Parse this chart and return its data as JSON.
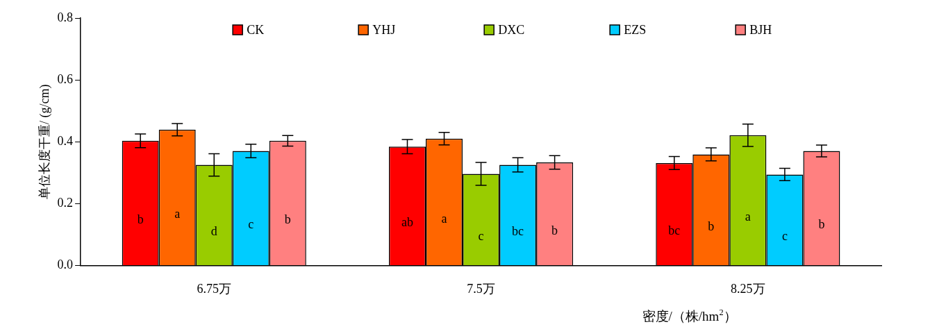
{
  "chart_data": {
    "type": "bar",
    "xlabel": "密度/（株/hm$^{2}$）",
    "ylabel": "单位长度干重/ (g/cm)",
    "categories": [
      "6.75万",
      "7.5万",
      "8.25万"
    ],
    "series": [
      {
        "name": "CK",
        "color": "#ff0000",
        "values": [
          0.403,
          0.384,
          0.331
        ],
        "errors": [
          0.022,
          0.023,
          0.021
        ],
        "value_labels": [
          "b",
          "ab",
          "bc"
        ]
      },
      {
        "name": "YHJ",
        "color": "#ff6600",
        "values": [
          0.439,
          0.41,
          0.359
        ],
        "errors": [
          0.02,
          0.02,
          0.021
        ],
        "value_labels": [
          "a",
          "a",
          "b"
        ]
      },
      {
        "name": "DXC",
        "color": "#99cc00",
        "values": [
          0.325,
          0.296,
          0.421
        ],
        "errors": [
          0.036,
          0.037,
          0.036
        ],
        "value_labels": [
          "d",
          "c",
          "a"
        ]
      },
      {
        "name": "EZS",
        "color": "#00ccff",
        "values": [
          0.37,
          0.325,
          0.294
        ],
        "errors": [
          0.022,
          0.023,
          0.02
        ],
        "value_labels": [
          "c",
          "bc",
          "c"
        ]
      },
      {
        "name": "BJH",
        "color": "#ff8080",
        "values": [
          0.403,
          0.333,
          0.37
        ],
        "errors": [
          0.017,
          0.022,
          0.019
        ],
        "value_labels": [
          "b",
          "b",
          "b"
        ]
      }
    ],
    "ylim": [
      0,
      0.8
    ],
    "yticks": [
      {
        "value": 0,
        "label": "0.0"
      },
      {
        "value": 0.2,
        "label": "0.2"
      },
      {
        "value": 0.4,
        "label": "0.4"
      },
      {
        "value": 0.6,
        "label": "0.6"
      },
      {
        "value": 0.8,
        "label": "0.8"
      }
    ],
    "grid": false,
    "legend": "top"
  }
}
